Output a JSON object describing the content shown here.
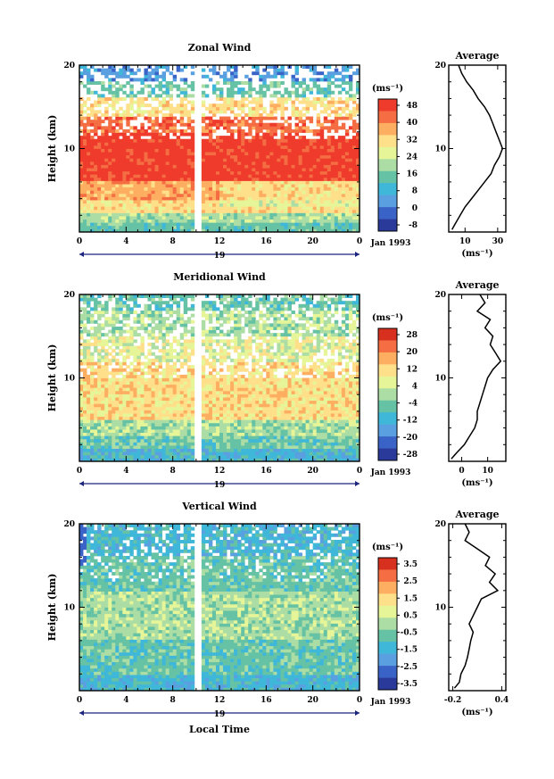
{
  "chart_data": [
    {
      "type": "heatmap",
      "title": "Zonal Wind",
      "ylabel": "Height (km)",
      "ylim": [
        0,
        20
      ],
      "y_ticks": [
        "10",
        "20"
      ],
      "x_ticks": [
        "0",
        "4",
        "8",
        "12",
        "16",
        "20",
        "0"
      ],
      "xlim": [
        0,
        24
      ],
      "date_label": "19",
      "month_label": "Jan 1993",
      "colorbar_unit": "(ms⁻¹)",
      "colorbar_ticks": [
        "48",
        "40",
        "32",
        "24",
        "16",
        "8",
        "0",
        "-8"
      ],
      "colorbar_colors": [
        "#ef3b2c",
        "#f46d43",
        "#fdae61",
        "#fee08b",
        "#e6f598",
        "#abdda4",
        "#66c2a5",
        "#3fb7d9",
        "#5aa0e0",
        "#3a63c8",
        "#2a3a9a"
      ],
      "data_gap_hours": [
        10,
        10.3
      ],
      "average_profile": {
        "title": "Average",
        "xlabel": "(ms⁻¹)",
        "x_ticks": [
          "10",
          "30"
        ],
        "y_ticks": [
          "10",
          "20"
        ],
        "xlim": [
          0,
          35
        ],
        "points": [
          [
            2,
            0.3
          ],
          [
            4,
            1
          ],
          [
            7,
            2
          ],
          [
            10,
            3
          ],
          [
            14,
            4
          ],
          [
            18,
            5
          ],
          [
            22,
            6
          ],
          [
            26,
            7
          ],
          [
            28,
            8
          ],
          [
            31,
            9
          ],
          [
            33,
            10
          ],
          [
            31,
            11
          ],
          [
            29,
            12
          ],
          [
            27,
            13
          ],
          [
            25,
            14
          ],
          [
            22,
            15
          ],
          [
            18,
            16
          ],
          [
            15,
            17
          ],
          [
            11,
            18
          ],
          [
            8,
            19
          ],
          [
            6,
            20
          ]
        ]
      }
    },
    {
      "type": "heatmap",
      "title": "Meridional Wind",
      "ylabel": "Height (km)",
      "ylim": [
        0,
        20
      ],
      "y_ticks": [
        "10",
        "20"
      ],
      "x_ticks": [
        "0",
        "4",
        "8",
        "12",
        "16",
        "20",
        "0"
      ],
      "xlim": [
        0,
        24
      ],
      "date_label": "19",
      "month_label": "Jan 1993",
      "colorbar_unit": "(ms⁻¹)",
      "colorbar_ticks": [
        "28",
        "20",
        "12",
        "4",
        "-4",
        "-12",
        "-20",
        "-28"
      ],
      "colorbar_colors": [
        "#d7301f",
        "#f46d43",
        "#fdae61",
        "#fee08b",
        "#e6f598",
        "#abdda4",
        "#66c2a5",
        "#3fb7d9",
        "#5aa0e0",
        "#3a63c8",
        "#2a3a9a"
      ],
      "data_gap_hours": [
        10,
        10.3
      ],
      "average_profile": {
        "title": "Average",
        "xlabel": "(ms⁻¹)",
        "x_ticks": [
          "0",
          "10"
        ],
        "y_ticks": [
          "10",
          "20"
        ],
        "xlim": [
          -5,
          17
        ],
        "points": [
          [
            -4,
            0.3
          ],
          [
            -2,
            1
          ],
          [
            1,
            2
          ],
          [
            3,
            3
          ],
          [
            5,
            4
          ],
          [
            6,
            5
          ],
          [
            6,
            6
          ],
          [
            7,
            7
          ],
          [
            8,
            8
          ],
          [
            9,
            9
          ],
          [
            10,
            10
          ],
          [
            12,
            11
          ],
          [
            15,
            12
          ],
          [
            13,
            13
          ],
          [
            11,
            14
          ],
          [
            12,
            15
          ],
          [
            9,
            16
          ],
          [
            11,
            17
          ],
          [
            6,
            18
          ],
          [
            9,
            19
          ],
          [
            7,
            20
          ]
        ]
      }
    },
    {
      "type": "heatmap",
      "title": "Vertical Wind",
      "ylabel": "Height (km)",
      "xlabel": "Local Time",
      "ylim": [
        0,
        20
      ],
      "y_ticks": [
        "10",
        "20"
      ],
      "x_ticks": [
        "0",
        "4",
        "8",
        "12",
        "16",
        "20",
        "0"
      ],
      "xlim": [
        0,
        24
      ],
      "date_label": "19",
      "month_label": "Jan 1993",
      "colorbar_unit": "(ms⁻¹)",
      "colorbar_ticks": [
        "3.5",
        "2.5",
        "1.5",
        "0.5",
        "-0.5",
        "-1.5",
        "-2.5",
        "-3.5"
      ],
      "colorbar_colors": [
        "#d7301f",
        "#f46d43",
        "#fdae61",
        "#fee08b",
        "#e6f598",
        "#abdda4",
        "#66c2a5",
        "#3fb7d9",
        "#5aa0e0",
        "#3a63c8",
        "#2a3a9a"
      ],
      "data_gap_hours": [
        10,
        10.3
      ],
      "average_profile": {
        "title": "Average",
        "xlabel": "(ms⁻¹)",
        "x_ticks": [
          "-0.2",
          "0.4"
        ],
        "y_ticks": [
          "10",
          "20"
        ],
        "xlim": [
          -0.25,
          0.45
        ],
        "points": [
          [
            -0.18,
            0.3
          ],
          [
            -0.12,
            1
          ],
          [
            -0.1,
            2
          ],
          [
            -0.05,
            3
          ],
          [
            -0.02,
            4
          ],
          [
            0.0,
            5
          ],
          [
            0.02,
            6
          ],
          [
            0.05,
            7
          ],
          [
            0.0,
            8
          ],
          [
            0.05,
            9
          ],
          [
            0.1,
            10
          ],
          [
            0.15,
            11
          ],
          [
            0.35,
            12
          ],
          [
            0.25,
            13
          ],
          [
            0.32,
            14
          ],
          [
            0.2,
            15
          ],
          [
            0.25,
            16
          ],
          [
            0.1,
            17
          ],
          [
            -0.05,
            18
          ],
          [
            0.0,
            19
          ],
          [
            -0.05,
            20
          ]
        ]
      }
    }
  ]
}
